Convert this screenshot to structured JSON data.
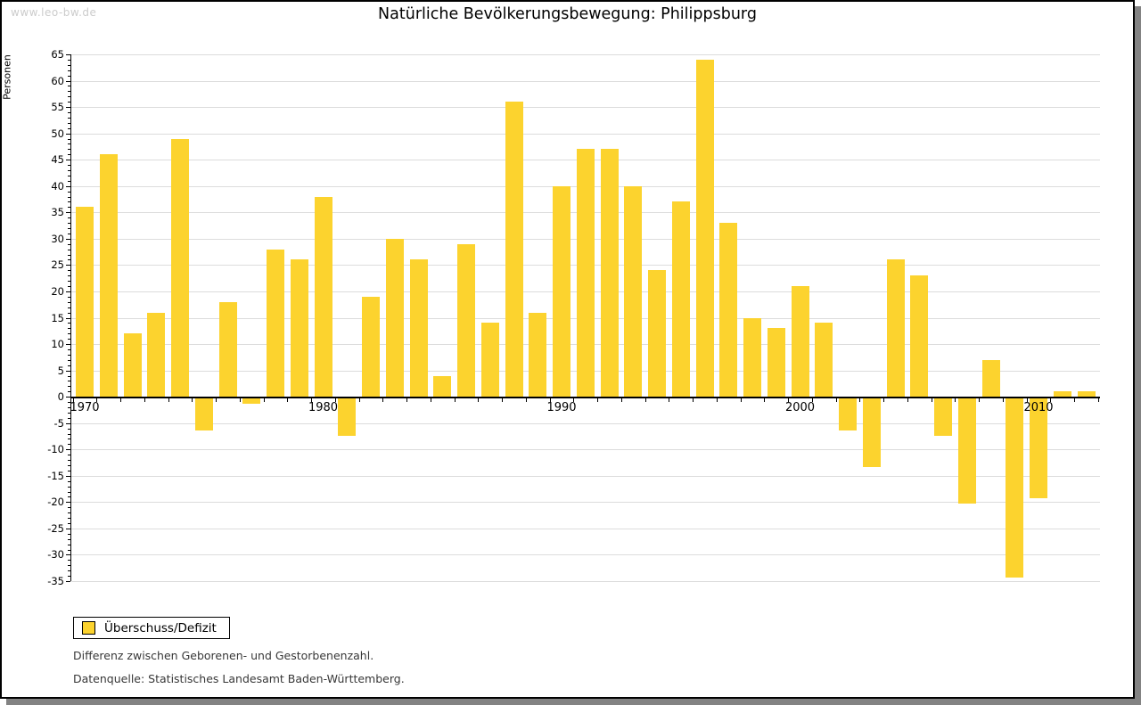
{
  "watermark": "www.leo-bw.de",
  "title": "Natürliche Bevölkerungsbewegung: Philippsburg",
  "legend": {
    "label": "Überschuss/Defizit"
  },
  "footnotes": [
    "Differenz zwischen Geborenen- und Gestorbenenzahl.",
    "Datenquelle: Statistisches Landesamt Baden-Württemberg."
  ],
  "colors": {
    "bar": "#FCD32E",
    "grid": "#DCDCDC",
    "axis": "#000000",
    "watermark": "#CCCCCC",
    "frame_shadow": "#838383",
    "background": "#FFFFFF"
  },
  "chart_data": {
    "type": "bar",
    "title": "Natürliche Bevölkerungsbewegung: Philippsburg",
    "xlabel": "",
    "ylabel": "Personen",
    "ylim": [
      -35,
      65
    ],
    "ytick_step": 5,
    "grid": true,
    "legend_position": "bottom-left",
    "x_tick_labels": [
      "1970",
      "1980",
      "1990",
      "2000",
      "2010"
    ],
    "categories": [
      "1970",
      "1971",
      "1972",
      "1973",
      "1974",
      "1975",
      "1976",
      "1977",
      "1978",
      "1979",
      "1980",
      "1981",
      "1982",
      "1983",
      "1984",
      "1985",
      "1986",
      "1987",
      "1988",
      "1989",
      "1990",
      "1991",
      "1992",
      "1993",
      "1994",
      "1995",
      "1996",
      "1997",
      "1998",
      "1999",
      "2000",
      "2001",
      "2002",
      "2003",
      "2004",
      "2005",
      "2006",
      "2007",
      "2008",
      "2009",
      "2010",
      "2011",
      "2012"
    ],
    "series": [
      {
        "name": "Überschuss/Defizit",
        "values": [
          36,
          46,
          12,
          16,
          49,
          -6,
          18,
          -1,
          28,
          26,
          38,
          -7,
          19,
          30,
          26,
          4,
          29,
          14,
          56,
          16,
          40,
          47,
          47,
          40,
          24,
          37,
          64,
          33,
          15,
          13,
          21,
          14,
          -6,
          -13,
          26,
          23,
          -7,
          -20,
          7,
          -34,
          -19,
          1,
          1
        ]
      }
    ]
  }
}
